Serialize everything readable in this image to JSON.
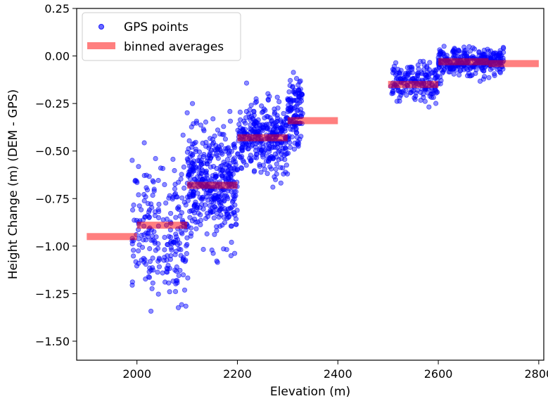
{
  "chart_data": {
    "type": "scatter",
    "xlabel": "Elevation (m)",
    "ylabel": "Height Change (m) (DEM - GPS)",
    "xlim": [
      1880,
      2810
    ],
    "ylim": [
      -1.6,
      0.25
    ],
    "xticks": [
      2000,
      2200,
      2400,
      2600,
      2800
    ],
    "xtick_labels": [
      "2000",
      "2200",
      "2400",
      "2600",
      "2800"
    ],
    "yticks": [
      0.25,
      0.0,
      -0.25,
      -0.5,
      -0.75,
      -1.0,
      -1.25,
      -1.5
    ],
    "ytick_labels": [
      "0.25",
      "0.00",
      "−0.25",
      "−0.50",
      "−0.75",
      "−1.00",
      "−1.25",
      "−1.50"
    ],
    "grid": false,
    "legend_position": "top-left",
    "series": [
      {
        "name": "GPS points",
        "kind": "scatter",
        "color": "#0000ff",
        "clusters": [
          {
            "x_range": [
              1990,
              2100
            ],
            "y_mean": -0.92,
            "y_spread": 0.25,
            "count": 230
          },
          {
            "x_range": [
              2100,
              2200
            ],
            "y_mean": -0.68,
            "y_spread": 0.2,
            "count": 420
          },
          {
            "x_range": [
              2200,
              2300
            ],
            "y_mean": -0.43,
            "y_spread": 0.13,
            "count": 330
          },
          {
            "x_range": [
              2300,
              2330
            ],
            "y_mean": -0.32,
            "y_spread": 0.15,
            "count": 120
          },
          {
            "x_range": [
              2505,
              2600
            ],
            "y_mean": -0.14,
            "y_spread": 0.07,
            "count": 180
          },
          {
            "x_range": [
              2600,
              2730
            ],
            "y_mean": -0.03,
            "y_spread": 0.05,
            "count": 300
          }
        ]
      },
      {
        "name": "binned averages",
        "kind": "step-bars",
        "color": "#ff0000",
        "bins": [
          {
            "x0": 1900,
            "x1": 2000,
            "y": -0.95
          },
          {
            "x0": 2000,
            "x1": 2100,
            "y": -0.89
          },
          {
            "x0": 2100,
            "x1": 2200,
            "y": -0.68
          },
          {
            "x0": 2200,
            "x1": 2300,
            "y": -0.43
          },
          {
            "x0": 2300,
            "x1": 2400,
            "y": -0.34
          },
          {
            "x0": 2500,
            "x1": 2600,
            "y": -0.15
          },
          {
            "x0": 2600,
            "x1": 2700,
            "y": -0.03
          },
          {
            "x0": 2700,
            "x1": 2800,
            "y": -0.04
          }
        ]
      }
    ]
  }
}
